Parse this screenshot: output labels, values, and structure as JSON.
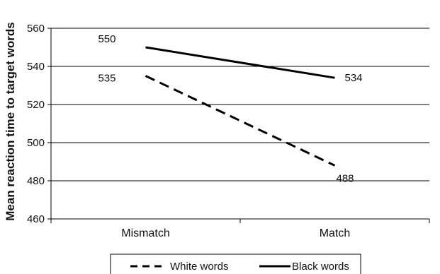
{
  "chart_data": {
    "type": "line",
    "title": "",
    "xlabel": "",
    "ylabel": "Mean reaction time to target words",
    "categories": [
      "Mismatch",
      "Match"
    ],
    "ylim": [
      460,
      560
    ],
    "yticks": [
      460,
      480,
      500,
      520,
      540,
      560
    ],
    "grid": true,
    "legend_position": "bottom",
    "series": [
      {
        "name": "White words",
        "values": [
          535,
          488
        ],
        "value_labels": [
          "535",
          "488"
        ],
        "line_style": "dashed",
        "color": "#000000"
      },
      {
        "name": "Black words",
        "values": [
          550,
          534
        ],
        "value_labels": [
          "550",
          "534"
        ],
        "line_style": "solid",
        "color": "#000000"
      }
    ]
  }
}
